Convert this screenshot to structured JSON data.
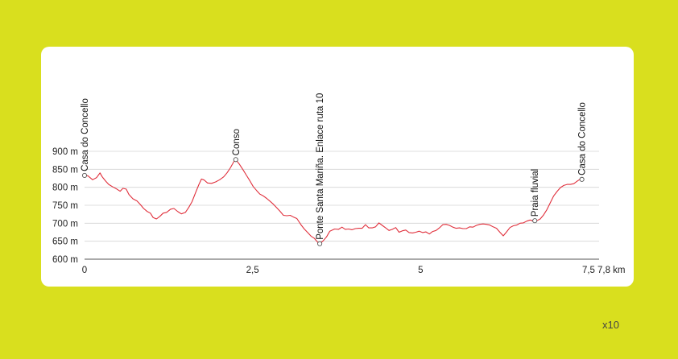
{
  "chart_data": {
    "type": "area",
    "xlabel": "",
    "ylabel": "",
    "x_unit": "km",
    "y_unit": "m",
    "xlim": [
      0,
      7.8
    ],
    "ylim": [
      600,
      900
    ],
    "y_ticks": [
      900,
      850,
      800,
      750,
      700,
      650,
      600
    ],
    "y_tick_labels": [
      "900 m",
      "850 m",
      "800 m",
      "750 m",
      "700 m",
      "650 m",
      "600 m"
    ],
    "x_ticks": [
      0,
      2.5,
      5,
      7.5,
      7.8
    ],
    "x_tick_labels": [
      "0",
      "2,5",
      "5",
      "7,5",
      "7,8 km"
    ],
    "grid": true,
    "line_color": "#e0303c",
    "series": [
      {
        "points": [
          [
            0.0,
            833
          ],
          [
            0.05,
            832
          ],
          [
            0.12,
            821
          ],
          [
            0.18,
            827
          ],
          [
            0.23,
            840
          ],
          [
            0.26,
            830
          ],
          [
            0.31,
            818
          ],
          [
            0.36,
            808
          ],
          [
            0.42,
            801
          ],
          [
            0.48,
            795
          ],
          [
            0.53,
            789
          ],
          [
            0.57,
            797
          ],
          [
            0.62,
            795
          ],
          [
            0.66,
            780
          ],
          [
            0.72,
            768
          ],
          [
            0.78,
            762
          ],
          [
            0.83,
            752
          ],
          [
            0.88,
            741
          ],
          [
            0.93,
            733
          ],
          [
            0.98,
            728
          ],
          [
            1.02,
            716
          ],
          [
            1.07,
            712
          ],
          [
            1.12,
            719
          ],
          [
            1.17,
            728
          ],
          [
            1.22,
            730
          ],
          [
            1.28,
            739
          ],
          [
            1.33,
            741
          ],
          [
            1.39,
            732
          ],
          [
            1.44,
            726
          ],
          [
            1.5,
            730
          ],
          [
            1.55,
            744
          ],
          [
            1.6,
            760
          ],
          [
            1.65,
            784
          ],
          [
            1.7,
            807
          ],
          [
            1.74,
            823
          ],
          [
            1.78,
            820
          ],
          [
            1.83,
            812
          ],
          [
            1.89,
            811
          ],
          [
            1.95,
            815
          ],
          [
            2.01,
            821
          ],
          [
            2.07,
            829
          ],
          [
            2.12,
            840
          ],
          [
            2.17,
            854
          ],
          [
            2.22,
            871
          ],
          [
            2.25,
            877
          ],
          [
            2.3,
            865
          ],
          [
            2.36,
            848
          ],
          [
            2.41,
            833
          ],
          [
            2.46,
            818
          ],
          [
            2.51,
            802
          ],
          [
            2.56,
            791
          ],
          [
            2.61,
            781
          ],
          [
            2.66,
            776
          ],
          [
            2.71,
            769
          ],
          [
            2.76,
            761
          ],
          [
            2.81,
            753
          ],
          [
            2.86,
            743
          ],
          [
            2.91,
            733
          ],
          [
            2.96,
            722
          ],
          [
            3.01,
            721
          ],
          [
            3.06,
            722
          ],
          [
            3.11,
            717
          ],
          [
            3.16,
            713
          ],
          [
            3.22,
            696
          ],
          [
            3.27,
            684
          ],
          [
            3.32,
            674
          ],
          [
            3.37,
            664
          ],
          [
            3.42,
            658
          ],
          [
            3.47,
            647
          ],
          [
            3.5,
            643
          ],
          [
            3.55,
            651
          ],
          [
            3.6,
            662
          ],
          [
            3.65,
            678
          ],
          [
            3.72,
            684
          ],
          [
            3.78,
            683
          ],
          [
            3.83,
            689
          ],
          [
            3.88,
            683
          ],
          [
            3.93,
            684
          ],
          [
            3.98,
            682
          ],
          [
            4.03,
            685
          ],
          [
            4.08,
            686
          ],
          [
            4.13,
            686
          ],
          [
            4.18,
            696
          ],
          [
            4.23,
            687
          ],
          [
            4.28,
            687
          ],
          [
            4.33,
            690
          ],
          [
            4.38,
            701
          ],
          [
            4.43,
            694
          ],
          [
            4.48,
            687
          ],
          [
            4.53,
            680
          ],
          [
            4.58,
            683
          ],
          [
            4.63,
            688
          ],
          [
            4.68,
            675
          ],
          [
            4.73,
            679
          ],
          [
            4.78,
            681
          ],
          [
            4.83,
            674
          ],
          [
            4.88,
            673
          ],
          [
            4.93,
            675
          ],
          [
            4.98,
            678
          ],
          [
            5.03,
            674
          ],
          [
            5.08,
            676
          ],
          [
            5.13,
            670
          ],
          [
            5.18,
            677
          ],
          [
            5.23,
            680
          ],
          [
            5.28,
            687
          ],
          [
            5.33,
            696
          ],
          [
            5.38,
            697
          ],
          [
            5.43,
            694
          ],
          [
            5.48,
            689
          ],
          [
            5.53,
            686
          ],
          [
            5.58,
            687
          ],
          [
            5.63,
            685
          ],
          [
            5.68,
            685
          ],
          [
            5.73,
            690
          ],
          [
            5.78,
            689
          ],
          [
            5.83,
            694
          ],
          [
            5.88,
            697
          ],
          [
            5.93,
            698
          ],
          [
            5.98,
            697
          ],
          [
            6.03,
            695
          ],
          [
            6.08,
            690
          ],
          [
            6.13,
            686
          ],
          [
            6.18,
            675
          ],
          [
            6.23,
            665
          ],
          [
            6.28,
            676
          ],
          [
            6.33,
            688
          ],
          [
            6.38,
            693
          ],
          [
            6.43,
            695
          ],
          [
            6.48,
            700
          ],
          [
            6.53,
            701
          ],
          [
            6.58,
            706
          ],
          [
            6.63,
            709
          ],
          [
            6.68,
            706
          ],
          [
            6.73,
            707
          ],
          [
            6.78,
            712
          ],
          [
            6.83,
            723
          ],
          [
            6.88,
            738
          ],
          [
            6.93,
            757
          ],
          [
            6.98,
            776
          ],
          [
            7.03,
            788
          ],
          [
            7.08,
            799
          ],
          [
            7.13,
            805
          ],
          [
            7.18,
            808
          ],
          [
            7.23,
            808
          ],
          [
            7.28,
            810
          ],
          [
            7.33,
            817
          ],
          [
            7.37,
            822
          ],
          [
            7.4,
            820
          ]
        ]
      }
    ],
    "waypoints": [
      {
        "label": "Casa do Concello",
        "x": 0.0,
        "y": 833
      },
      {
        "label": "Conso",
        "x": 2.25,
        "y": 877
      },
      {
        "label": "Ponte Santa Mariña. Enlace ruta 10",
        "x": 3.5,
        "y": 643
      },
      {
        "label": "Praia fluvial",
        "x": 6.7,
        "y": 707
      },
      {
        "label": "Casa do Concello",
        "x": 7.4,
        "y": 822
      }
    ]
  },
  "footer": {
    "label": "x10"
  }
}
